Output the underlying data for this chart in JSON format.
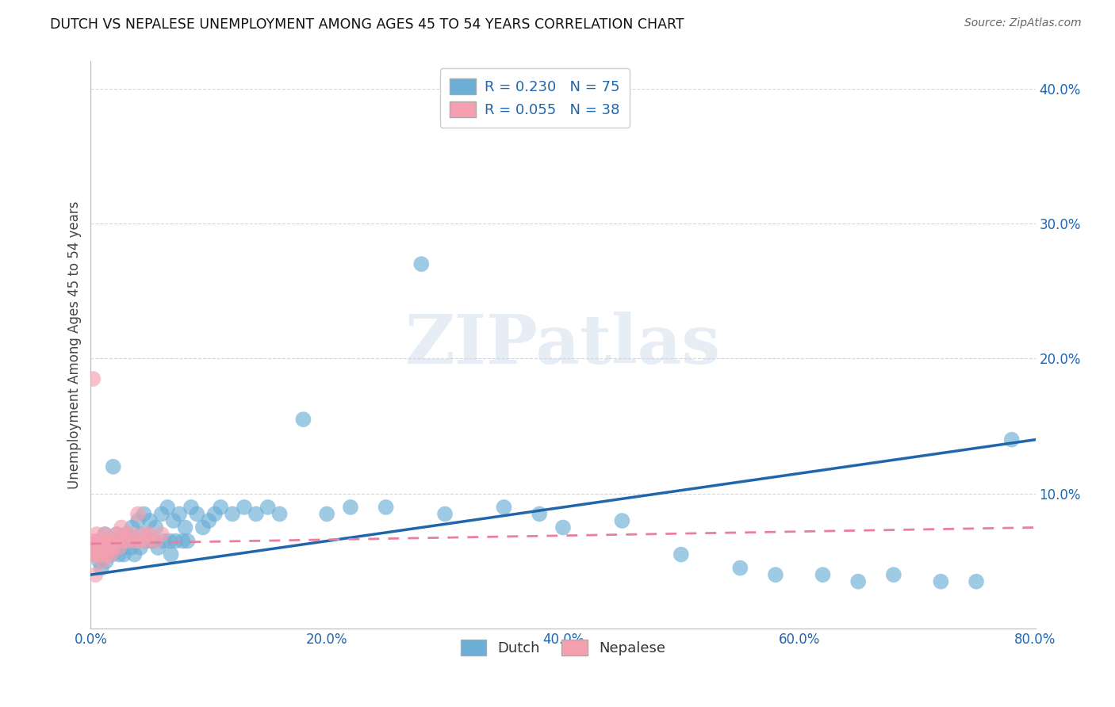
{
  "title": "DUTCH VS NEPALESE UNEMPLOYMENT AMONG AGES 45 TO 54 YEARS CORRELATION CHART",
  "source": "Source: ZipAtlas.com",
  "ylabel": "Unemployment Among Ages 45 to 54 years",
  "xlim": [
    0.0,
    0.8
  ],
  "ylim": [
    0.0,
    0.42
  ],
  "xticks": [
    0.0,
    0.2,
    0.4,
    0.6,
    0.8
  ],
  "yticks": [
    0.0,
    0.1,
    0.2,
    0.3,
    0.4
  ],
  "xtick_labels": [
    "0.0%",
    "20.0%",
    "40.0%",
    "60.0%",
    "80.0%"
  ],
  "ytick_labels": [
    "",
    "10.0%",
    "20.0%",
    "30.0%",
    "40.0%"
  ],
  "dutch_color": "#6baed6",
  "nepalese_color": "#f4a0b0",
  "dutch_line_color": "#2166ac",
  "nepalese_line_color": "#e87fa0",
  "dutch_R": 0.23,
  "dutch_N": 75,
  "nepalese_R": 0.055,
  "nepalese_N": 38,
  "watermark": "ZIPatlas",
  "dutch_x": [
    0.003,
    0.005,
    0.007,
    0.008,
    0.009,
    0.01,
    0.012,
    0.013,
    0.015,
    0.016,
    0.018,
    0.019,
    0.02,
    0.021,
    0.022,
    0.024,
    0.025,
    0.026,
    0.028,
    0.03,
    0.032,
    0.034,
    0.035,
    0.037,
    0.038,
    0.04,
    0.042,
    0.044,
    0.045,
    0.047,
    0.05,
    0.052,
    0.055,
    0.057,
    0.06,
    0.062,
    0.065,
    0.067,
    0.068,
    0.07,
    0.072,
    0.075,
    0.078,
    0.08,
    0.082,
    0.085,
    0.09,
    0.095,
    0.1,
    0.105,
    0.11,
    0.12,
    0.13,
    0.14,
    0.15,
    0.16,
    0.18,
    0.2,
    0.22,
    0.25,
    0.28,
    0.3,
    0.35,
    0.38,
    0.4,
    0.45,
    0.5,
    0.55,
    0.58,
    0.62,
    0.65,
    0.68,
    0.72,
    0.75,
    0.78
  ],
  "dutch_y": [
    0.06,
    0.055,
    0.05,
    0.065,
    0.045,
    0.055,
    0.07,
    0.05,
    0.065,
    0.06,
    0.055,
    0.12,
    0.065,
    0.06,
    0.07,
    0.055,
    0.065,
    0.06,
    0.055,
    0.07,
    0.065,
    0.06,
    0.075,
    0.055,
    0.065,
    0.08,
    0.06,
    0.07,
    0.085,
    0.065,
    0.08,
    0.065,
    0.075,
    0.06,
    0.085,
    0.065,
    0.09,
    0.065,
    0.055,
    0.08,
    0.065,
    0.085,
    0.065,
    0.075,
    0.065,
    0.09,
    0.085,
    0.075,
    0.08,
    0.085,
    0.09,
    0.085,
    0.09,
    0.085,
    0.09,
    0.085,
    0.155,
    0.085,
    0.09,
    0.09,
    0.27,
    0.085,
    0.09,
    0.085,
    0.075,
    0.08,
    0.055,
    0.045,
    0.04,
    0.04,
    0.035,
    0.04,
    0.035,
    0.035,
    0.14
  ],
  "nepalese_x": [
    0.002,
    0.003,
    0.004,
    0.005,
    0.005,
    0.006,
    0.007,
    0.008,
    0.009,
    0.01,
    0.01,
    0.011,
    0.012,
    0.013,
    0.014,
    0.015,
    0.016,
    0.017,
    0.018,
    0.019,
    0.02,
    0.022,
    0.024,
    0.026,
    0.028,
    0.03,
    0.032,
    0.035,
    0.038,
    0.04,
    0.042,
    0.045,
    0.048,
    0.05,
    0.055,
    0.06,
    0.002,
    0.004
  ],
  "nepalese_y": [
    0.055,
    0.065,
    0.06,
    0.055,
    0.07,
    0.065,
    0.06,
    0.055,
    0.065,
    0.06,
    0.05,
    0.065,
    0.07,
    0.055,
    0.06,
    0.065,
    0.06,
    0.055,
    0.065,
    0.06,
    0.065,
    0.07,
    0.06,
    0.075,
    0.065,
    0.07,
    0.065,
    0.07,
    0.065,
    0.085,
    0.065,
    0.07,
    0.065,
    0.07,
    0.065,
    0.07,
    0.185,
    0.04
  ]
}
